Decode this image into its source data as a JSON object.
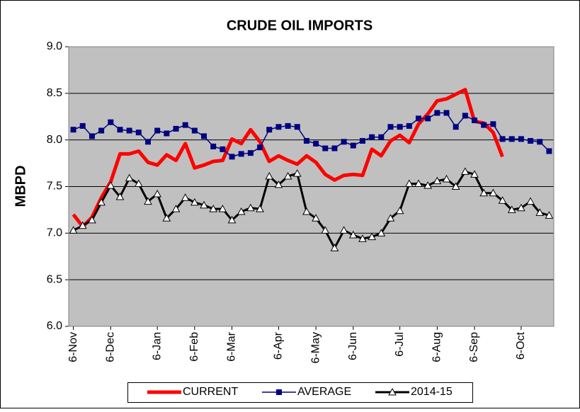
{
  "chart_data": {
    "type": "line",
    "title": "CRUDE OIL IMPORTS",
    "y_label": "MBPD",
    "categories": [
      "6-Nov",
      null,
      null,
      null,
      "6-Dec",
      null,
      null,
      null,
      null,
      "6-Jan",
      null,
      null,
      null,
      "6-Feb",
      null,
      null,
      null,
      "6-Mar",
      null,
      null,
      null,
      null,
      "6-Apr",
      null,
      null,
      null,
      "6-May",
      null,
      null,
      null,
      "6-Jun",
      null,
      null,
      null,
      null,
      "6-Jul",
      null,
      null,
      null,
      "6-Aug",
      null,
      null,
      null,
      "6-Sep",
      null,
      null,
      null,
      null,
      "6-Oct",
      null,
      null,
      null
    ],
    "series": [
      {
        "name": "CURRENT",
        "color": "#ff0000",
        "marker": "none",
        "values": [
          7.2,
          7.07,
          7.17,
          7.38,
          7.55,
          7.85,
          7.85,
          7.88,
          7.76,
          7.73,
          7.84,
          7.78,
          7.96,
          7.7,
          7.73,
          7.77,
          7.78,
          8.01,
          7.96,
          8.11,
          7.98,
          7.77,
          7.83,
          7.78,
          7.74,
          7.83,
          7.76,
          7.63,
          7.57,
          7.62,
          7.63,
          7.62,
          7.9,
          7.83,
          7.99,
          8.05,
          7.97,
          8.17,
          8.28,
          8.42,
          8.44,
          8.49,
          8.54,
          8.2,
          8.18,
          8.08,
          7.82,
          null,
          null,
          null,
          null,
          null
        ]
      },
      {
        "name": "AVERAGE",
        "color": "#000080",
        "marker": "square",
        "values": [
          8.11,
          8.15,
          8.04,
          8.1,
          8.19,
          8.11,
          8.1,
          8.08,
          7.98,
          8.1,
          8.07,
          8.12,
          8.16,
          8.1,
          8.04,
          7.93,
          7.9,
          7.82,
          7.85,
          7.86,
          7.92,
          8.11,
          8.14,
          8.15,
          8.14,
          7.99,
          7.96,
          7.91,
          7.91,
          7.98,
          7.94,
          7.99,
          8.03,
          8.03,
          8.14,
          8.14,
          8.15,
          8.23,
          8.23,
          8.29,
          8.29,
          8.14,
          8.26,
          8.21,
          8.16,
          8.17,
          8.01,
          8.01,
          8.01,
          7.99,
          7.98,
          7.88
        ]
      },
      {
        "name": "2014-15",
        "color": "#000000",
        "marker": "triangle",
        "values": [
          7.03,
          7.08,
          7.14,
          7.33,
          7.51,
          7.39,
          7.59,
          7.53,
          7.34,
          7.42,
          7.16,
          7.26,
          7.38,
          7.33,
          7.3,
          7.26,
          7.26,
          7.14,
          7.23,
          7.27,
          7.26,
          7.61,
          7.52,
          7.61,
          7.64,
          7.23,
          7.16,
          7.03,
          6.84,
          7.03,
          6.98,
          6.94,
          6.96,
          7.0,
          7.16,
          7.24,
          7.53,
          7.53,
          7.51,
          7.56,
          7.58,
          7.5,
          7.66,
          7.63,
          7.43,
          7.43,
          7.35,
          7.25,
          7.27,
          7.34,
          7.22,
          7.19
        ]
      }
    ],
    "ylim": [
      6,
      9
    ],
    "yticks": [
      {
        "value": 6,
        "label": "6.0"
      },
      {
        "value": 6.5,
        "label": "6.5"
      },
      {
        "value": 7,
        "label": "7.0"
      },
      {
        "value": 7.5,
        "label": "7.5"
      },
      {
        "value": 8,
        "label": "8.0"
      },
      {
        "value": 8.5,
        "label": "8.5"
      },
      {
        "value": 9,
        "label": "9.0"
      }
    ],
    "grid": true,
    "plot_background": "#c0c0c0",
    "legend": "bottom"
  }
}
